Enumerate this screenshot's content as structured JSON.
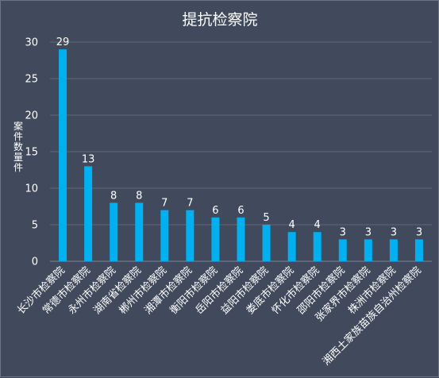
{
  "chart_data": {
    "type": "bar",
    "title": "提抗检察院",
    "ylabel": "案件数量件",
    "xlabel": "",
    "ylim": [
      0,
      30
    ],
    "yticks": [
      0,
      5,
      10,
      15,
      20,
      25,
      30
    ],
    "grid": true,
    "bar_color": "#00b0f0",
    "categories": [
      "长沙市检察院",
      "常德市检察院",
      "永州市检察院",
      "湖南省检察院",
      "郴州市检察院",
      "湘潭市检察院",
      "衡阳市检察院",
      "岳阳市检察院",
      "益阳市检察院",
      "娄底市检察院",
      "怀化市检察院",
      "邵阳市检察院",
      "张家界市检察院",
      "株洲市检察院",
      "湘西土家族苗族自治州检察院"
    ],
    "values": [
      29,
      13,
      8,
      8,
      7,
      7,
      6,
      6,
      5,
      4,
      4,
      3,
      3,
      3,
      3
    ]
  }
}
